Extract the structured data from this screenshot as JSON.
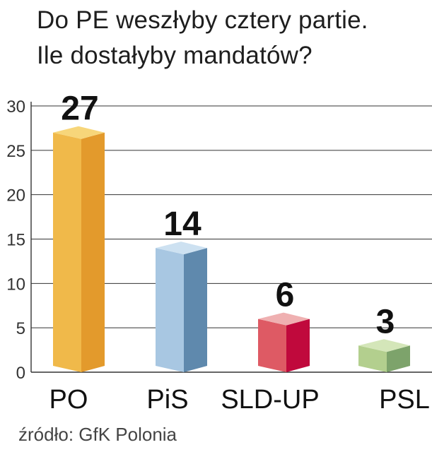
{
  "title_lines": [
    "Do PE weszłyby cztery partie.",
    "Ile dostałyby mandatów?"
  ],
  "source": "źródło: GfK Polonia",
  "chart_data": {
    "type": "bar",
    "title": "Do PE weszłyby cztery partie. Ile dostałyby mandatów?",
    "categories": [
      "PO",
      "PiS",
      "SLD-UP",
      "PSL"
    ],
    "values": [
      27,
      14,
      6,
      3
    ],
    "data_labels": [
      "27",
      "14",
      "6",
      "3"
    ],
    "ylim": [
      0,
      30
    ],
    "yticks": [
      0,
      5,
      10,
      15,
      20,
      25,
      30
    ],
    "ytick_labels": [
      "0",
      "5",
      "10",
      "15",
      "20",
      "25",
      "30"
    ],
    "grid": true,
    "colors": [
      {
        "front": "#f0b94a",
        "side": "#e39a2c",
        "top": "#f7d67a"
      },
      {
        "front": "#a8c7e2",
        "side": "#5f89ad",
        "top": "#cde1f1"
      },
      {
        "front": "#de5a64",
        "side": "#c0093c",
        "top": "#efb0b1"
      },
      {
        "front": "#b3cf8e",
        "side": "#7da36b",
        "top": "#d4e6b9"
      }
    ]
  }
}
